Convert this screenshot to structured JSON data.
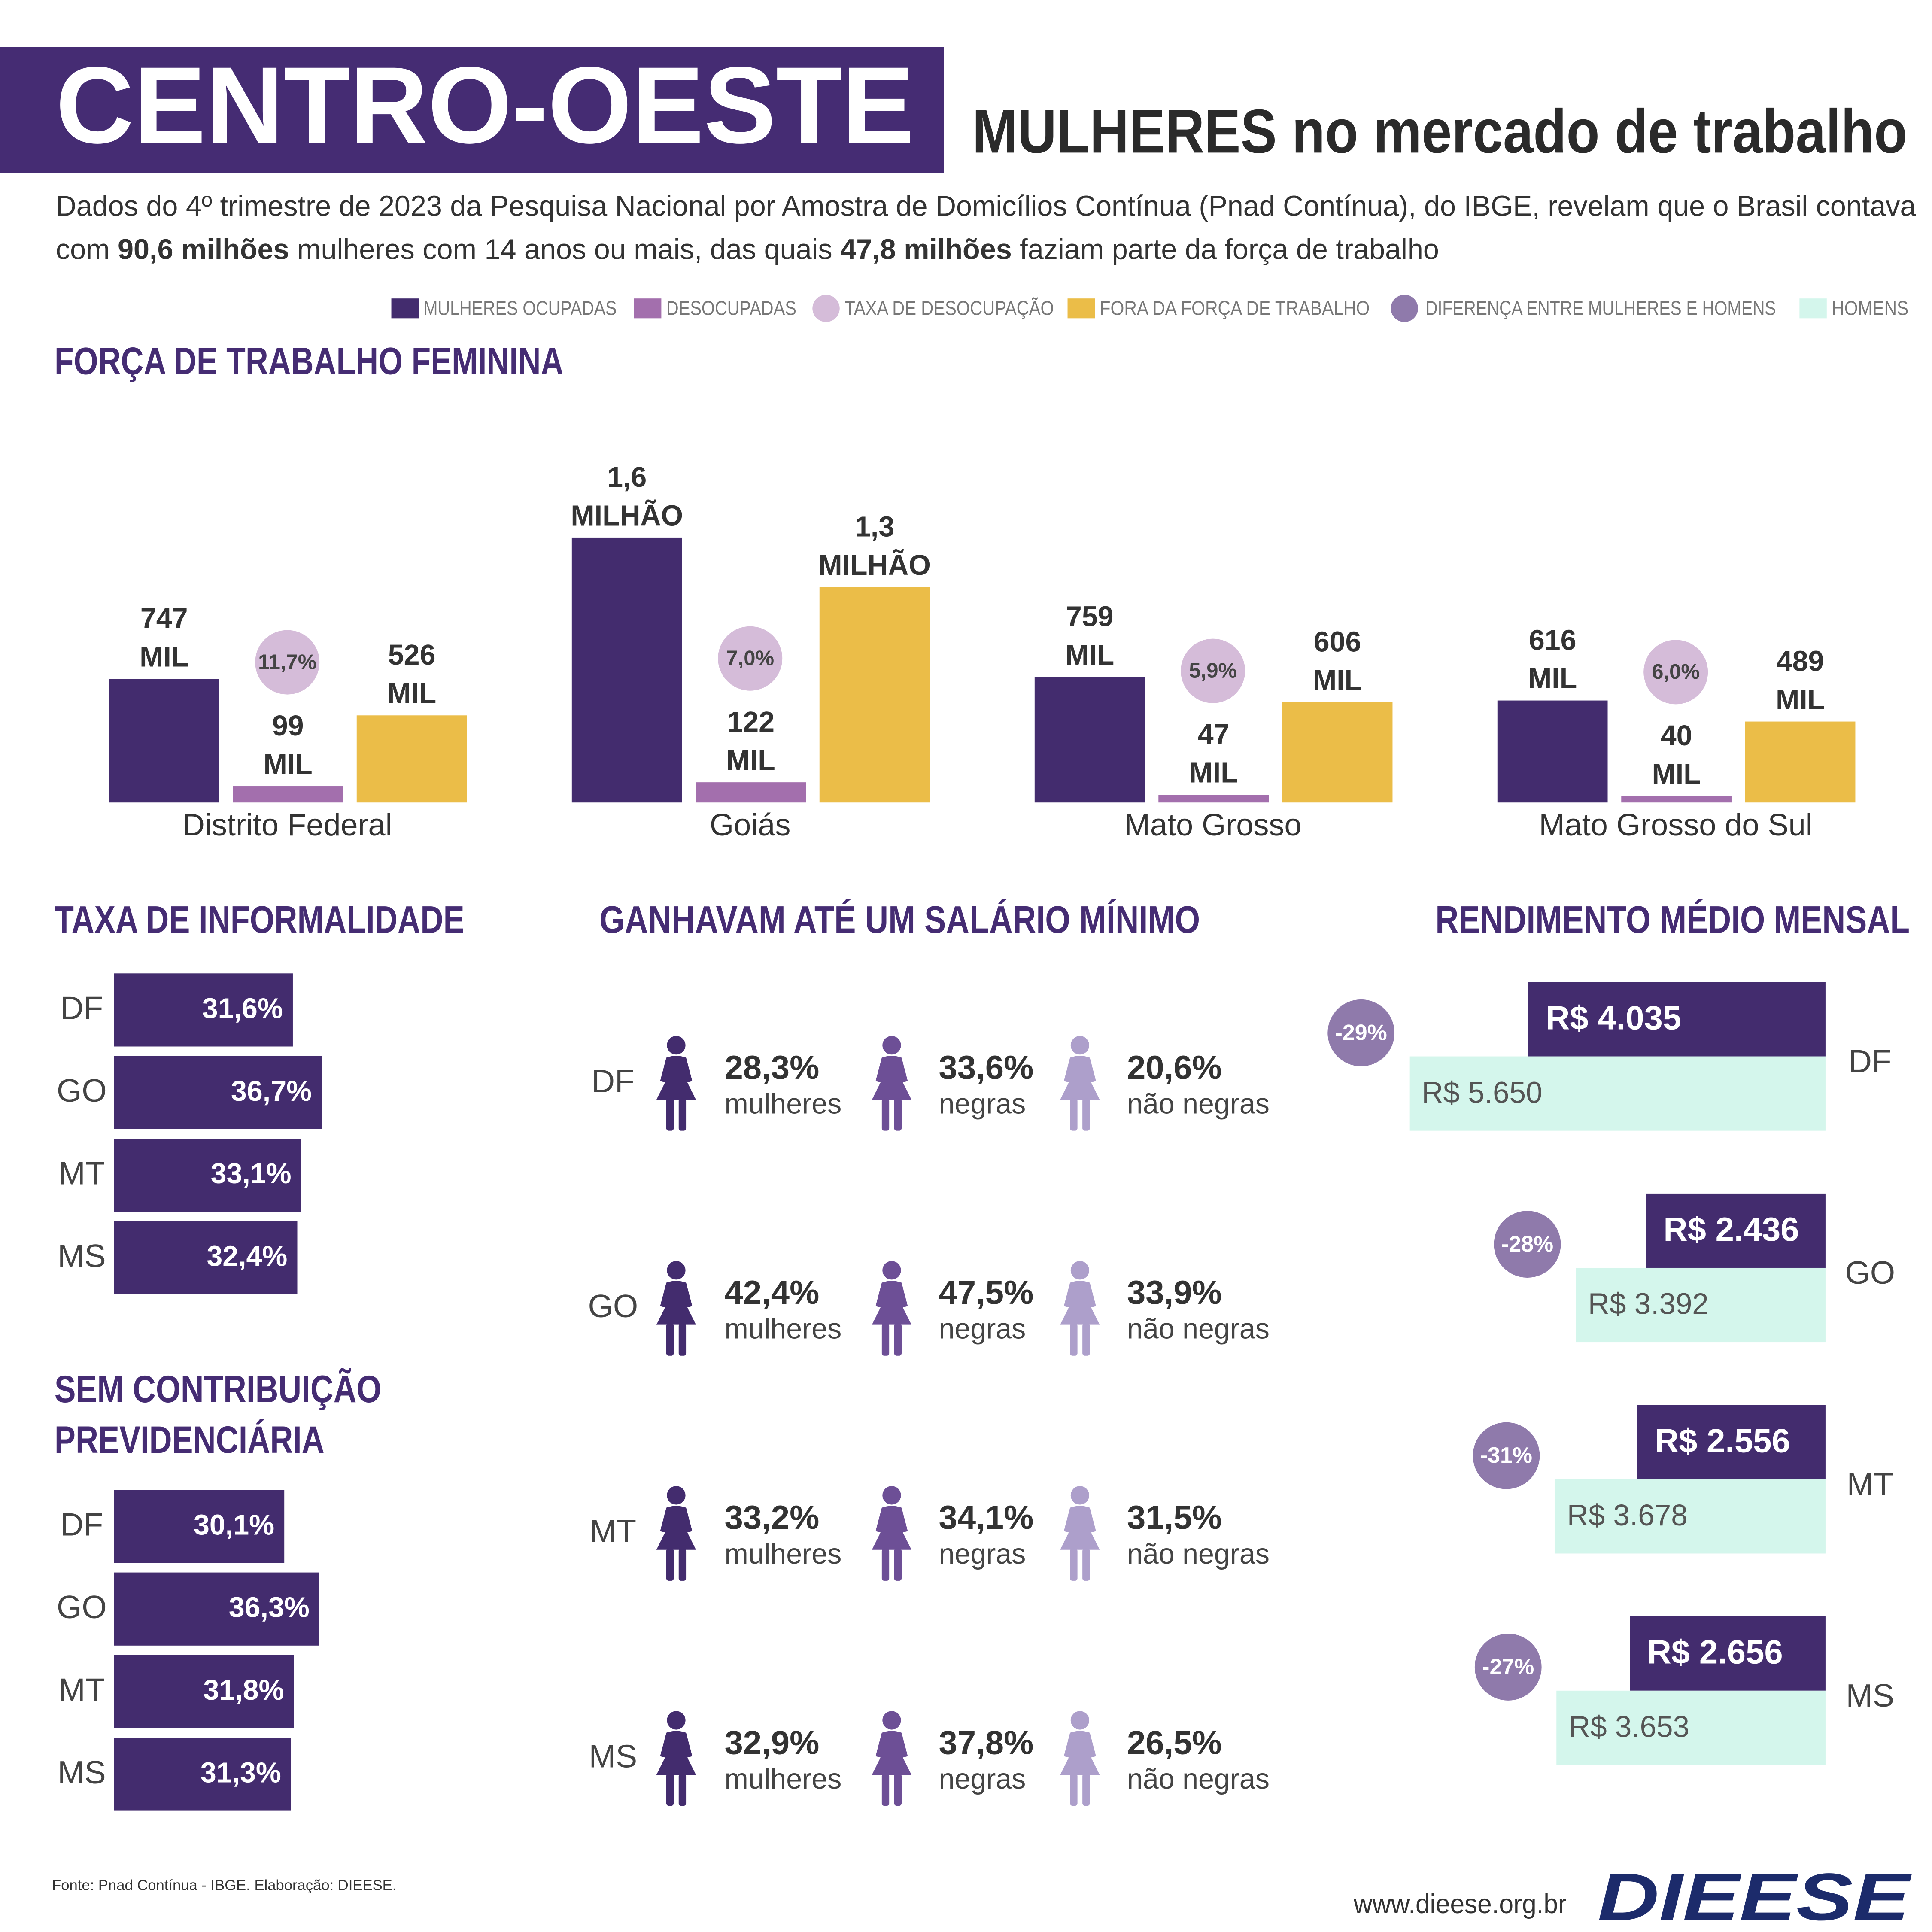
{
  "header": {
    "title": "CENTRO-OESTE",
    "subtitle": "MULHERES no mercado de trabalho",
    "intro": [
      [
        {
          "text": "Dados do 4º trimestre de 2023 da Pesquisa Nacional por Amostra de Domicílios Contínua (Pnad Contínua), do IBGE, revelam que o Brasil contava"
        }
      ],
      [
        {
          "text": "com "
        },
        {
          "text": "90,6 milhões",
          "bold": true
        },
        {
          "text": " mulheres com 14 anos ou mais, das quais "
        },
        {
          "text": "47,8 milhões",
          "bold": true
        },
        {
          "text": " faziam parte da força de trabalho"
        }
      ]
    ]
  },
  "chart_data": [
    {
      "type": "bar",
      "title": "FORÇA DE TRABALHO FEMININA",
      "categories": [
        "Distrito Federal",
        "Goiás",
        "Mato Grosso",
        "Mato Grosso do Sul"
      ],
      "series": [
        {
          "name": "MULHERES OCUPADAS",
          "color": "#432c6e",
          "values": [
            747,
            1600,
            759,
            616
          ],
          "value_labels": [
            [
              "747",
              "MIL"
            ],
            [
              "1,6",
              "MILHÃO"
            ],
            [
              "759",
              "MIL"
            ],
            [
              "616",
              "MIL"
            ]
          ]
        },
        {
          "name": "DESOCUPADAS",
          "color": "#a36fad",
          "values": [
            99,
            122,
            47,
            40
          ],
          "value_labels": [
            [
              "99",
              "MIL"
            ],
            [
              "122",
              "MIL"
            ],
            [
              "47",
              "MIL"
            ],
            [
              "40",
              "MIL"
            ]
          ]
        },
        {
          "name": "FORA DA FORÇA DE TRABALHO",
          "color": "#ebbd48",
          "values": [
            526,
            1300,
            606,
            489
          ],
          "value_labels": [
            [
              "526",
              "MIL"
            ],
            [
              "1,3",
              "MILHÃO"
            ],
            [
              "606",
              "MIL"
            ],
            [
              "489",
              "MIL"
            ]
          ]
        }
      ],
      "rates": {
        "name": "TAXA DE DESOCUPAÇÃO",
        "color": "#d5bcd9",
        "values": [
          11.7,
          7.0,
          5.9,
          6.0
        ],
        "value_labels": [
          "11,7%",
          "7,0%",
          "5,9%",
          "6,0%"
        ]
      }
    },
    {
      "type": "hbar",
      "title": "TAXA DE INFORMALIDADE",
      "categories": [
        "DF",
        "GO",
        "MT",
        "MS"
      ],
      "color": "#432c6e",
      "values": [
        31.6,
        36.7,
        33.1,
        32.4
      ],
      "value_labels": [
        "31,6%",
        "36,7%",
        "33,1%",
        "32,4%"
      ]
    },
    {
      "type": "hbar",
      "title": [
        "SEM CONTRIBUIÇÃO",
        "PREVIDENCIÁRIA"
      ],
      "categories": [
        "DF",
        "GO",
        "MT",
        "MS"
      ],
      "color": "#432c6e",
      "values": [
        30.1,
        36.3,
        31.8,
        31.3
      ],
      "value_labels": [
        "30,1%",
        "36,3%",
        "31,8%",
        "31,3%"
      ]
    },
    {
      "type": "pictogram",
      "title": "GANHAVAM ATÉ UM SALÁRIO MÍNIMO",
      "categories": [
        "DF",
        "GO",
        "MT",
        "MS"
      ],
      "series": [
        {
          "name": "mulheres",
          "color": "#432c6e",
          "values": [
            28.3,
            42.4,
            33.2,
            32.9
          ],
          "value_labels": [
            "28,3%",
            "42,4%",
            "33,2%",
            "32,9%"
          ]
        },
        {
          "name": "negras",
          "color": "#6d4f96",
          "values": [
            33.6,
            47.5,
            34.1,
            37.8
          ],
          "value_labels": [
            "33,6%",
            "47,5%",
            "34,1%",
            "37,8%"
          ]
        },
        {
          "name": "não negras",
          "color": "#ad9fcb",
          "values": [
            20.6,
            33.9,
            31.5,
            26.5
          ],
          "value_labels": [
            "20,6%",
            "33,9%",
            "31,5%",
            "26,5%"
          ]
        }
      ]
    },
    {
      "type": "hbar-pair",
      "title": "RENDIMENTO MÉDIO MENSAL",
      "categories": [
        "DF",
        "GO",
        "MT",
        "MS"
      ],
      "series": [
        {
          "color": "#432c6e",
          "values": [
            4035,
            2436,
            2556,
            2656
          ],
          "value_labels": [
            "R$ 4.035",
            "R$ 2.436",
            "R$ 2.556",
            "R$ 2.656"
          ]
        },
        {
          "name": "HOMENS",
          "color": "#d4f6ec",
          "values": [
            5650,
            3392,
            3678,
            3653
          ],
          "value_labels": [
            "R$ 5.650",
            "R$ 3.392",
            "R$ 3.678",
            "R$ 3.653"
          ]
        }
      ],
      "difference": {
        "name": "DIFERENÇA ENTRE MULHERES E HOMENS",
        "color": "#8f7aab",
        "values": [
          -29,
          -28,
          -31,
          -27
        ],
        "value_labels": [
          "-29%",
          "-28%",
          "-31%",
          "-27%"
        ]
      }
    }
  ],
  "footer": {
    "source": "Fonte: Pnad Contínua - IBGE. Elaboração: DIEESE.",
    "url": "www.dieese.org.br",
    "logo": "DIEESE"
  }
}
